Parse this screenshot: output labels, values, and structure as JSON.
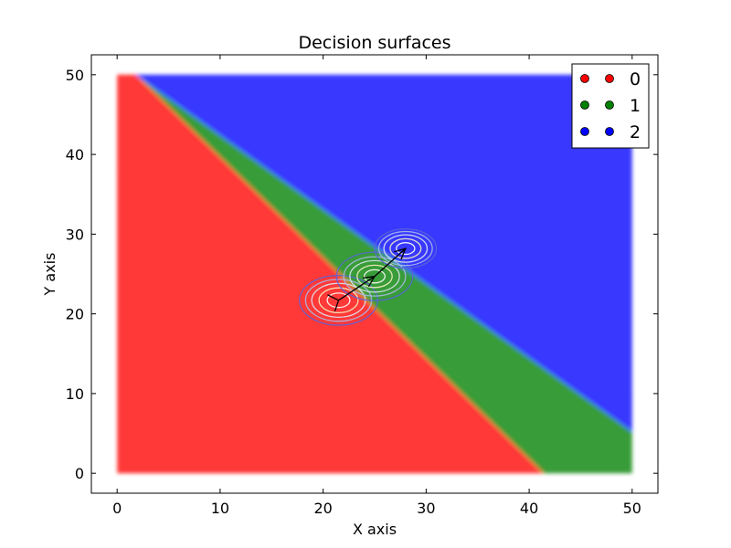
{
  "chart_data": {
    "type": "decision-surface",
    "title": "Decision surfaces",
    "xlabel": "X axis",
    "ylabel": "Y axis",
    "xlim": [
      -2.5,
      52.5
    ],
    "ylim": [
      -2.5,
      52.5
    ],
    "xticks": [
      0,
      10,
      20,
      30,
      40,
      50
    ],
    "yticks": [
      0,
      10,
      20,
      30,
      40,
      50
    ],
    "grid": false,
    "legend_position": "top-right",
    "classes": [
      {
        "label": "0",
        "color": "#ff0000"
      },
      {
        "label": "1",
        "color": "#008000"
      },
      {
        "label": "2",
        "color": "#0000ff"
      }
    ],
    "regions": [
      {
        "class": "0",
        "polygon": [
          [
            0,
            0
          ],
          [
            41.4,
            0
          ],
          [
            1.8,
            50
          ],
          [
            0,
            50
          ]
        ]
      },
      {
        "class": "1",
        "polygon": [
          [
            41.4,
            0
          ],
          [
            50,
            0
          ],
          [
            50,
            5.2
          ],
          [
            1.8,
            50
          ]
        ]
      },
      {
        "class": "2",
        "polygon": [
          [
            1.8,
            50
          ],
          [
            50,
            5.2
          ],
          [
            50,
            50
          ]
        ]
      }
    ],
    "gaussians": [
      {
        "class": "0",
        "center": [
          21.5,
          21.7
        ],
        "radii": [
          1.1,
          1.9,
          2.6,
          3.2,
          3.8
        ]
      },
      {
        "class": "1",
        "center": [
          25,
          24.7
        ],
        "radii": [
          1.0,
          1.7,
          2.4,
          3.0,
          3.7
        ]
      },
      {
        "class": "2",
        "center": [
          28,
          28.2
        ],
        "radii": [
          0.9,
          1.5,
          2.1,
          2.6,
          3.0
        ]
      }
    ],
    "path_points": [
      [
        21.5,
        21.7
      ],
      [
        25,
        24.7
      ],
      [
        28,
        28.2
      ]
    ]
  }
}
